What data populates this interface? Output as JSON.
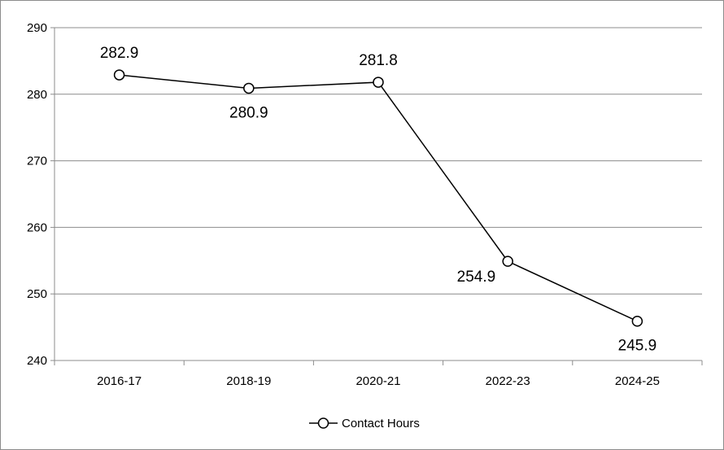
{
  "chart_data": {
    "type": "line",
    "title": "",
    "xlabel": "",
    "ylabel": "",
    "categories": [
      "2016-17",
      "2018-19",
      "2020-21",
      "2022-23",
      "2024-25"
    ],
    "series": [
      {
        "name": "Contact Hours",
        "values": [
          282.9,
          280.9,
          281.8,
          254.9,
          245.9
        ]
      }
    ],
    "ylim": [
      240,
      290
    ],
    "yticks": [
      240,
      250,
      260,
      270,
      280,
      290
    ],
    "data_labels": [
      "282.9",
      "280.9",
      "281.8",
      "254.9",
      "245.9"
    ],
    "label_positions": [
      "above",
      "below",
      "above",
      "left",
      "below"
    ],
    "grid": true,
    "legend_position": "bottom",
    "line_color": "#000000",
    "grid_color": "#8c8c8c"
  }
}
